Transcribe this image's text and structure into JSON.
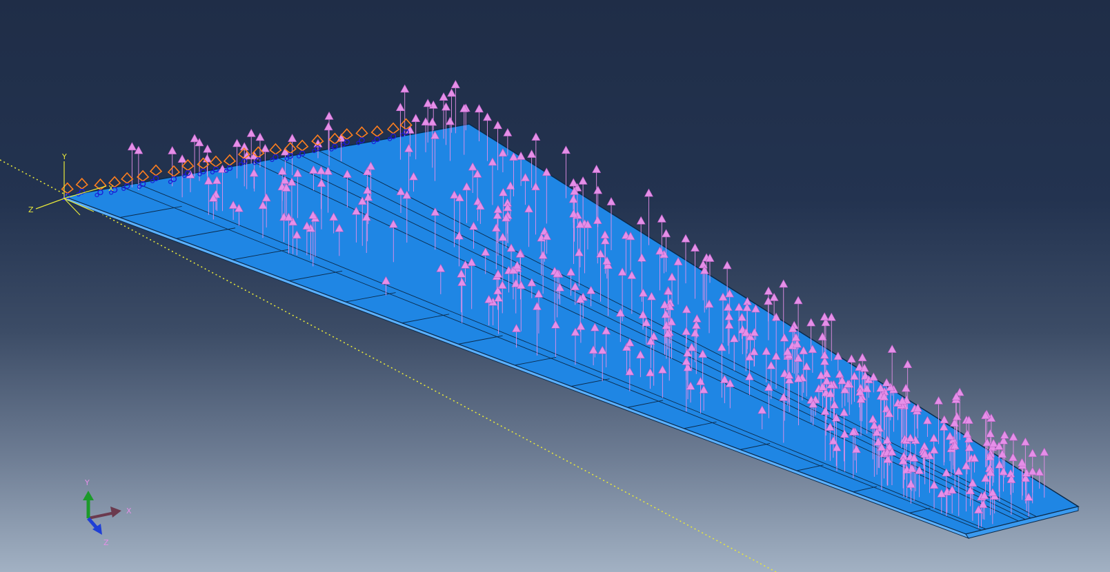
{
  "viewport": {
    "background_top": "#1f2d47",
    "background_bottom": "#a2b1c3"
  },
  "model": {
    "part_color": "#1f86e4",
    "part_edge_color": "#0b2a4a",
    "load_arrow_color": "#e58fe8",
    "bc_color_orange": "#ff7f1e",
    "bc_color_blue": "#1b1bd6",
    "datum_line_color": "#e8e83a"
  },
  "model_csys": {
    "x_label": "X",
    "y_label": "Y",
    "z_label": "Z",
    "color": "#e8e83a"
  },
  "view_triad": {
    "x_label": "X",
    "y_label": "Y",
    "z_label": "Z",
    "x_color": "#6b3a4e",
    "y_color": "#1c9a2a",
    "z_color": "#1e3fd6",
    "label_color": "#e58fe8"
  }
}
